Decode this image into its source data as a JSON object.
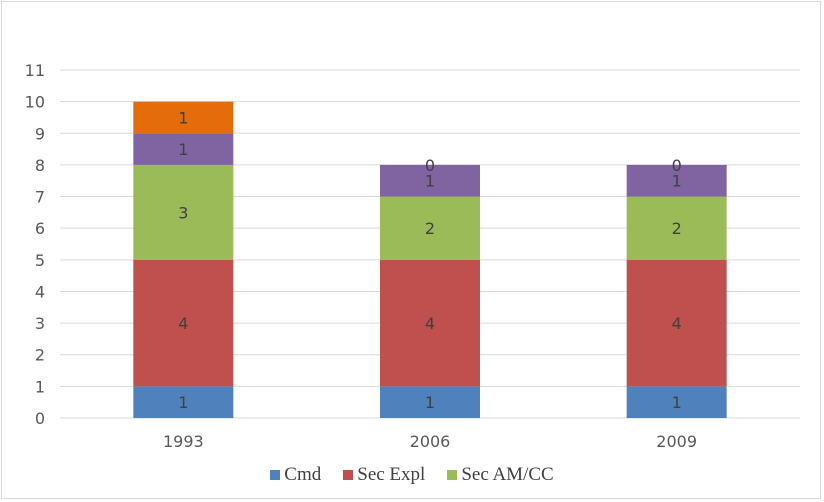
{
  "chart_data": {
    "type": "bar",
    "stacked": true,
    "categories": [
      "1993",
      "2006",
      "2009"
    ],
    "series": [
      {
        "name": "Cmd",
        "values": [
          1,
          1,
          1
        ],
        "color": "#4f81bd"
      },
      {
        "name": "Sec Expl",
        "values": [
          4,
          4,
          4
        ],
        "color": "#c0504d"
      },
      {
        "name": "Sec AM/CC",
        "values": [
          3,
          2,
          2
        ],
        "color": "#9bbb59"
      },
      {
        "values": [
          1,
          1,
          1
        ],
        "color": "#8064a2"
      },
      {
        "values": [
          1,
          0,
          0
        ],
        "color": "#e46c0a"
      }
    ],
    "yticks": [
      "0",
      "1",
      "2",
      "3",
      "4",
      "5",
      "6",
      "7",
      "8",
      "9",
      "10",
      "11"
    ],
    "ylim": [
      0,
      11
    ],
    "grid": true,
    "legend_position": "bottom"
  }
}
